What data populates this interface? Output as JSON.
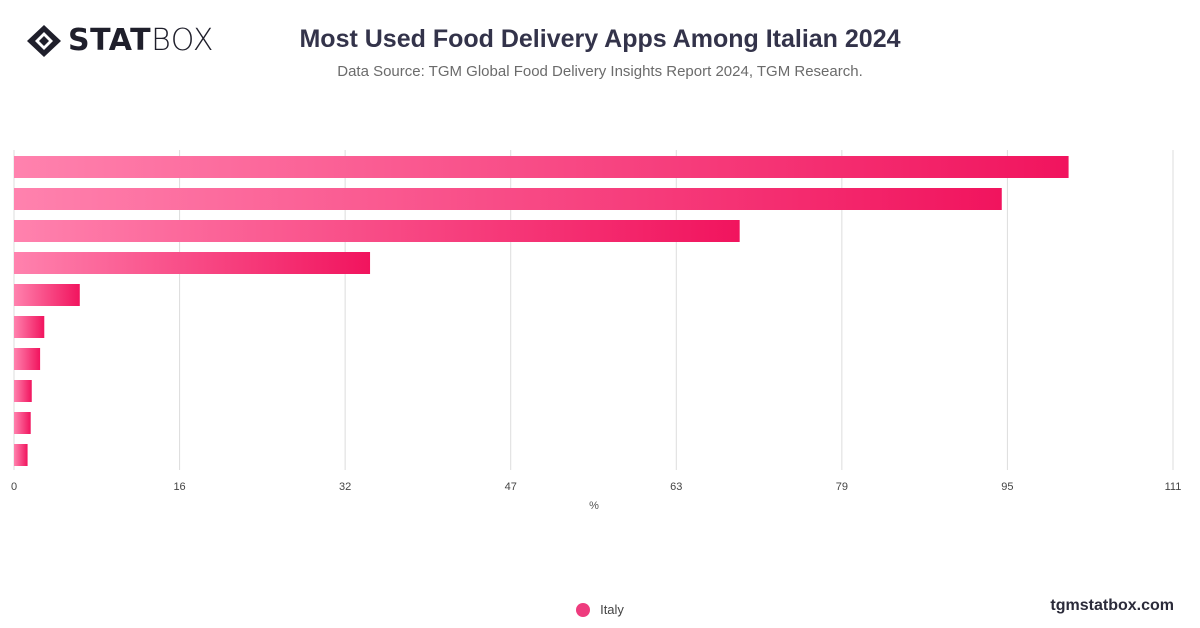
{
  "brand": {
    "logo_text_bold": "STAT",
    "logo_text_light": "BOX",
    "site": "tgmstatbox.com"
  },
  "header": {
    "title": "Most Used Food Delivery Apps Among Italian 2024",
    "subtitle": "Data Source: TGM Global Food Delivery Insights Report 2024, TGM Research."
  },
  "chart_data": {
    "type": "bar",
    "orientation": "horizontal",
    "title": "Most Used Food Delivery Apps Among Italian 2024",
    "xlabel": "%",
    "ylabel": "",
    "xlim": [
      0,
      111
    ],
    "x_ticks": [
      "0",
      "16",
      "32",
      "47",
      "63",
      "79",
      "95",
      "111"
    ],
    "categories": [
      "",
      "",
      "",
      "",
      "",
      "",
      "",
      "",
      "",
      ""
    ],
    "series": [
      {
        "name": "Italy",
        "values": [
          101,
          94.6,
          69.5,
          34.1,
          6.3,
          2.9,
          2.5,
          1.7,
          1.6,
          1.3
        ]
      }
    ],
    "grid": true,
    "legend_position": "bottom-center",
    "colors": {
      "bar_start": "#ff82ae",
      "bar_end": "#f1145e",
      "legend_dot": "#ee3c7e",
      "grid": "#dddddd",
      "axis_text": "#444444"
    }
  }
}
